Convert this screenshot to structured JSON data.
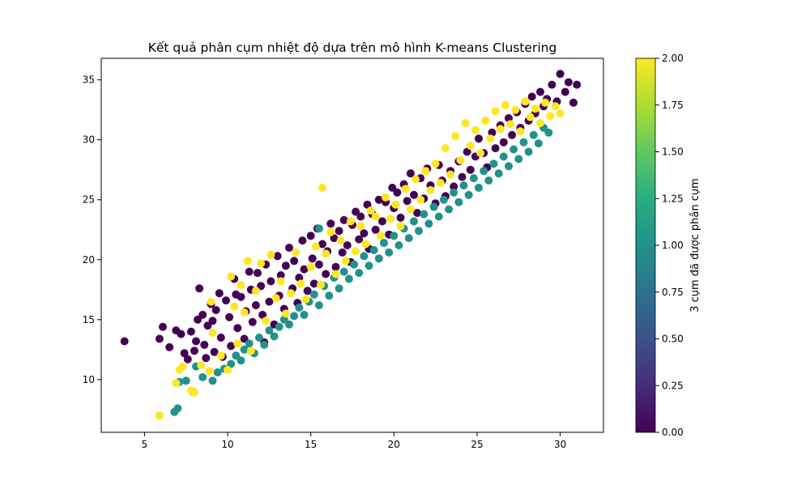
{
  "chart_data": {
    "type": "scatter",
    "title": "Kết quả phân cụm nhiệt độ dựa trên mô hình K-means Clustering",
    "xlabel": "",
    "ylabel": "",
    "xlim": [
      2.4,
      32.6
    ],
    "ylim": [
      5.6,
      36.8
    ],
    "x_ticks": [
      5,
      10,
      15,
      20,
      25,
      30
    ],
    "y_ticks": [
      10,
      15,
      20,
      25,
      30,
      35
    ],
    "grid": false,
    "colorbar": {
      "label": "3 cụm đã được phân cụm",
      "min": 0,
      "max": 2,
      "ticks": [
        "0.00",
        "0.25",
        "0.50",
        "0.75",
        "1.00",
        "1.25",
        "1.50",
        "1.75",
        "2.00"
      ],
      "colormap": "viridis"
    },
    "cluster_colors": {
      "0": "#440154",
      "1": "#21918c",
      "2": "#fde725"
    },
    "series": [
      {
        "cluster": 0,
        "points": [
          [
            3.8,
            13.2
          ],
          [
            5.9,
            13.4
          ],
          [
            6.1,
            14.4
          ],
          [
            6.5,
            12.7
          ],
          [
            6.9,
            14.1
          ],
          [
            7.2,
            13.8
          ],
          [
            7.4,
            12.2
          ],
          [
            7.6,
            11.7
          ],
          [
            7.8,
            14.0
          ],
          [
            8.0,
            12.4
          ],
          [
            8.1,
            13.2
          ],
          [
            8.2,
            15.0
          ],
          [
            8.3,
            17.6
          ],
          [
            8.5,
            15.4
          ],
          [
            8.6,
            12.9
          ],
          [
            8.7,
            11.8
          ],
          [
            8.8,
            14.5
          ],
          [
            9.0,
            16.3
          ],
          [
            9.1,
            14.9
          ],
          [
            9.2,
            12.3
          ],
          [
            9.3,
            15.8
          ],
          [
            9.5,
            17.2
          ],
          [
            9.6,
            13.5
          ],
          [
            9.7,
            11.9
          ],
          [
            9.9,
            16.6
          ],
          [
            10.1,
            15.2
          ],
          [
            10.2,
            12.8
          ],
          [
            10.4,
            18.4
          ],
          [
            10.5,
            17.1
          ],
          [
            10.6,
            14.3
          ],
          [
            10.8,
            16.9
          ],
          [
            11.0,
            13.4
          ],
          [
            11.1,
            15.7
          ],
          [
            11.3,
            19.0
          ],
          [
            11.4,
            17.5
          ],
          [
            11.5,
            14.8
          ],
          [
            11.7,
            16.2
          ],
          [
            11.8,
            18.9
          ],
          [
            12.0,
            17.8
          ],
          [
            12.1,
            15.4
          ],
          [
            12.2,
            13.1
          ],
          [
            12.3,
            19.6
          ],
          [
            12.5,
            16.5
          ],
          [
            12.6,
            18.2
          ],
          [
            12.8,
            14.6
          ],
          [
            13.0,
            20.3
          ],
          [
            13.1,
            17.0
          ],
          [
            13.2,
            18.7
          ],
          [
            13.4,
            15.9
          ],
          [
            13.5,
            19.5
          ],
          [
            13.7,
            21.0
          ],
          [
            13.9,
            17.6
          ],
          [
            14.0,
            19.9
          ],
          [
            14.2,
            16.4
          ],
          [
            14.3,
            18.5
          ],
          [
            14.5,
            21.6
          ],
          [
            14.6,
            19.2
          ],
          [
            14.8,
            17.4
          ],
          [
            15.0,
            22.0
          ],
          [
            15.1,
            20.1
          ],
          [
            15.2,
            18.0
          ],
          [
            15.4,
            22.6
          ],
          [
            15.5,
            19.6
          ],
          [
            15.7,
            21.3
          ],
          [
            15.9,
            18.8
          ],
          [
            16.0,
            20.7
          ],
          [
            16.2,
            23.0
          ],
          [
            16.4,
            21.8
          ],
          [
            16.5,
            19.4
          ],
          [
            16.7,
            22.4
          ],
          [
            16.9,
            20.6
          ],
          [
            17.0,
            23.3
          ],
          [
            17.2,
            21.2
          ],
          [
            17.4,
            19.8
          ],
          [
            17.5,
            22.9
          ],
          [
            17.7,
            24.0
          ],
          [
            17.9,
            21.7
          ],
          [
            18.0,
            23.6
          ],
          [
            18.2,
            22.2
          ],
          [
            18.4,
            24.6
          ],
          [
            18.5,
            20.9
          ],
          [
            18.7,
            23.8
          ],
          [
            18.9,
            22.5
          ],
          [
            19.1,
            25.0
          ],
          [
            19.3,
            23.2
          ],
          [
            19.5,
            24.8
          ],
          [
            19.7,
            22.1
          ],
          [
            19.9,
            26.0
          ],
          [
            20.0,
            24.3
          ],
          [
            20.2,
            25.6
          ],
          [
            20.4,
            23.5
          ],
          [
            20.6,
            26.3
          ],
          [
            20.8,
            24.9
          ],
          [
            21.0,
            27.2
          ],
          [
            21.2,
            25.4
          ],
          [
            21.4,
            23.9
          ],
          [
            21.6,
            26.8
          ],
          [
            21.8,
            25.1
          ],
          [
            22.0,
            27.6
          ],
          [
            22.2,
            26.2
          ],
          [
            22.5,
            24.7
          ],
          [
            22.7,
            27.9
          ],
          [
            22.9,
            26.6
          ],
          [
            23.1,
            25.3
          ],
          [
            23.4,
            27.4
          ],
          [
            23.6,
            26.1
          ],
          [
            23.9,
            28.2
          ],
          [
            24.1,
            26.9
          ],
          [
            24.4,
            29.0
          ],
          [
            24.6,
            27.5
          ],
          [
            24.9,
            28.6
          ],
          [
            25.1,
            30.1
          ],
          [
            25.4,
            28.9
          ],
          [
            25.6,
            27.7
          ],
          [
            25.9,
            30.6
          ],
          [
            26.1,
            29.3
          ],
          [
            26.4,
            31.2
          ],
          [
            26.6,
            29.8
          ],
          [
            26.9,
            31.8
          ],
          [
            27.1,
            30.4
          ],
          [
            27.4,
            32.3
          ],
          [
            27.6,
            31.0
          ],
          [
            27.9,
            33.0
          ],
          [
            28.1,
            31.6
          ],
          [
            28.3,
            33.6
          ],
          [
            28.5,
            32.2
          ],
          [
            28.8,
            34.0
          ],
          [
            29.0,
            32.8
          ],
          [
            29.2,
            33.4
          ],
          [
            29.5,
            34.6
          ],
          [
            29.8,
            33.2
          ],
          [
            30.0,
            35.5
          ],
          [
            30.3,
            34.0
          ],
          [
            30.5,
            34.8
          ],
          [
            30.8,
            33.1
          ],
          [
            31.0,
            34.6
          ]
        ]
      },
      {
        "cluster": 1,
        "points": [
          [
            6.8,
            7.3
          ],
          [
            7.0,
            7.6
          ],
          [
            7.1,
            9.8
          ],
          [
            7.5,
            9.9
          ],
          [
            7.9,
            9.0
          ],
          [
            8.1,
            11.1
          ],
          [
            8.5,
            10.2
          ],
          [
            9.1,
            9.9
          ],
          [
            9.4,
            10.6
          ],
          [
            9.8,
            10.9
          ],
          [
            10.2,
            11.3
          ],
          [
            10.5,
            12.0
          ],
          [
            10.8,
            11.6
          ],
          [
            11.0,
            12.5
          ],
          [
            11.3,
            13.0
          ],
          [
            11.6,
            12.2
          ],
          [
            11.9,
            13.5
          ],
          [
            12.2,
            12.9
          ],
          [
            12.5,
            14.1
          ],
          [
            12.8,
            13.6
          ],
          [
            13.1,
            14.4
          ],
          [
            13.4,
            15.0
          ],
          [
            13.7,
            14.6
          ],
          [
            14.0,
            15.3
          ],
          [
            14.3,
            16.0
          ],
          [
            14.6,
            15.4
          ],
          [
            14.9,
            16.5
          ],
          [
            15.2,
            17.1
          ],
          [
            15.5,
            16.2
          ],
          [
            15.5,
            22.6
          ],
          [
            15.8,
            17.8
          ],
          [
            16.1,
            17.0
          ],
          [
            16.4,
            18.5
          ],
          [
            16.7,
            17.6
          ],
          [
            17.0,
            19.0
          ],
          [
            17.3,
            18.4
          ],
          [
            17.6,
            19.6
          ],
          [
            17.9,
            18.9
          ],
          [
            18.2,
            20.3
          ],
          [
            18.5,
            19.5
          ],
          [
            18.8,
            20.8
          ],
          [
            19.1,
            20.1
          ],
          [
            19.4,
            21.4
          ],
          [
            19.7,
            20.6
          ],
          [
            20.0,
            22.0
          ],
          [
            20.3,
            21.2
          ],
          [
            20.6,
            22.6
          ],
          [
            20.9,
            21.8
          ],
          [
            21.2,
            23.2
          ],
          [
            21.5,
            22.4
          ],
          [
            21.8,
            23.8
          ],
          [
            22.1,
            23.0
          ],
          [
            22.4,
            24.4
          ],
          [
            22.7,
            23.6
          ],
          [
            23.0,
            25.0
          ],
          [
            23.3,
            24.2
          ],
          [
            23.6,
            25.6
          ],
          [
            23.9,
            24.8
          ],
          [
            24.2,
            26.2
          ],
          [
            24.5,
            25.4
          ],
          [
            24.8,
            26.8
          ],
          [
            25.1,
            26.0
          ],
          [
            25.4,
            27.4
          ],
          [
            25.7,
            26.6
          ],
          [
            26.0,
            28.0
          ],
          [
            26.3,
            27.2
          ],
          [
            26.6,
            28.6
          ],
          [
            26.9,
            27.8
          ],
          [
            27.2,
            29.2
          ],
          [
            27.5,
            28.4
          ],
          [
            27.8,
            29.8
          ],
          [
            28.1,
            29.0
          ],
          [
            28.4,
            30.4
          ],
          [
            28.7,
            29.7
          ],
          [
            29.0,
            31.0
          ],
          [
            29.3,
            30.6
          ]
        ]
      },
      {
        "cluster": 2,
        "points": [
          [
            5.9,
            7.0
          ],
          [
            6.9,
            9.7
          ],
          [
            7.1,
            10.8
          ],
          [
            7.3,
            11.1
          ],
          [
            7.8,
            9.1
          ],
          [
            8.0,
            8.9
          ],
          [
            8.4,
            11.2
          ],
          [
            8.9,
            10.7
          ],
          [
            9.0,
            16.5
          ],
          [
            9.1,
            13.9
          ],
          [
            9.6,
            12.0
          ],
          [
            10.0,
            10.8
          ],
          [
            10.2,
            18.6
          ],
          [
            10.4,
            16.1
          ],
          [
            10.6,
            13.0
          ],
          [
            10.8,
            17.9
          ],
          [
            11.0,
            15.6
          ],
          [
            11.2,
            19.9
          ],
          [
            11.4,
            12.4
          ],
          [
            11.7,
            17.4
          ],
          [
            12.0,
            19.7
          ],
          [
            12.3,
            14.9
          ],
          [
            12.6,
            20.4
          ],
          [
            12.9,
            16.8
          ],
          [
            13.2,
            18.2
          ],
          [
            13.5,
            15.5
          ],
          [
            13.8,
            17.2
          ],
          [
            14.1,
            20.6
          ],
          [
            14.4,
            18.0
          ],
          [
            14.7,
            16.7
          ],
          [
            15.0,
            19.4
          ],
          [
            15.3,
            21.1
          ],
          [
            15.6,
            17.9
          ],
          [
            15.7,
            26.0
          ],
          [
            15.9,
            20.5
          ],
          [
            16.2,
            22.3
          ],
          [
            16.5,
            18.8
          ],
          [
            16.8,
            21.6
          ],
          [
            17.1,
            19.9
          ],
          [
            17.4,
            23.2
          ],
          [
            17.7,
            20.7
          ],
          [
            18.0,
            22.8
          ],
          [
            18.3,
            21.3
          ],
          [
            18.6,
            24.1
          ],
          [
            18.9,
            23.6
          ],
          [
            19.2,
            22.0
          ],
          [
            19.5,
            25.2
          ],
          [
            19.8,
            23.4
          ],
          [
            20.1,
            24.6
          ],
          [
            20.4,
            22.8
          ],
          [
            20.7,
            25.9
          ],
          [
            21.0,
            24.2
          ],
          [
            21.3,
            26.7
          ],
          [
            21.6,
            25.0
          ],
          [
            21.9,
            27.4
          ],
          [
            22.2,
            25.8
          ],
          [
            22.5,
            28.0
          ],
          [
            22.8,
            26.4
          ],
          [
            23.1,
            29.3
          ],
          [
            23.4,
            27.1
          ],
          [
            23.7,
            30.3
          ],
          [
            24.0,
            28.3
          ],
          [
            24.3,
            31.4
          ],
          [
            24.6,
            29.5
          ],
          [
            24.9,
            30.8
          ],
          [
            25.2,
            28.9
          ],
          [
            25.5,
            31.6
          ],
          [
            25.8,
            30.1
          ],
          [
            26.1,
            32.4
          ],
          [
            26.4,
            30.9
          ],
          [
            26.7,
            32.9
          ],
          [
            27.0,
            31.3
          ],
          [
            27.3,
            32.5
          ],
          [
            27.6,
            30.7
          ],
          [
            27.9,
            33.2
          ],
          [
            28.2,
            31.9
          ],
          [
            28.5,
            32.6
          ],
          [
            28.8,
            31.4
          ],
          [
            29.1,
            33.1
          ],
          [
            29.4,
            32.0
          ],
          [
            29.7,
            32.8
          ],
          [
            30.0,
            32.2
          ]
        ]
      }
    ]
  }
}
